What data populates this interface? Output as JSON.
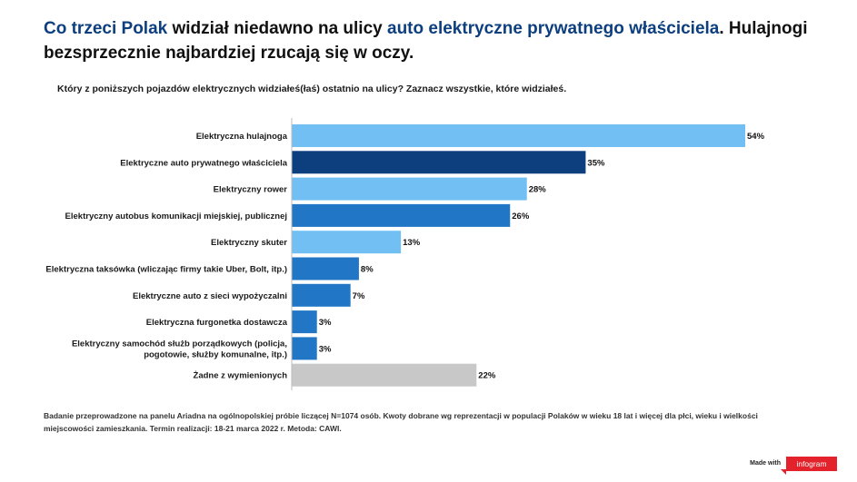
{
  "title": {
    "part1": "Co trzeci Polak",
    "part2": " widział niedawno na ulicy ",
    "part3": "auto elektryczne prywatnego właściciela",
    "part4": ". Hulajnogi bezsprzecznie najbardziej rzucają się w oczy."
  },
  "question": "Który z poniższych pojazdów elektrycznych widziałeś(łaś) ostatnio na ulicy? Zaznacz wszystkie, które widziałeś.",
  "footnote": "Badanie przeprowadzone na panelu Ariadna na ogólnopolskiej próbie liczącej N=1074 osób. Kwoty dobrane wg reprezentacji w populacji Polaków w wieku 18 lat i więcej dla płci, wieku i wielkości miejscowości zamieszkania. Termin realizacji:  18-21 marca 2022 r. Metoda: CAWI.",
  "branding": {
    "made_with": "Made with",
    "logo": "infogram"
  },
  "chart_data": {
    "type": "bar",
    "orientation": "horizontal",
    "categories": [
      [
        "Elektryczna hulajnoga"
      ],
      [
        "Elektryczne auto prywatnego właściciela"
      ],
      [
        "Elektryczny rower"
      ],
      [
        "Elektryczny autobus komunikacji miejskiej, publicznej"
      ],
      [
        "Elektryczny skuter"
      ],
      [
        "Elektryczna taksówka (wliczając firmy takie Uber, Bolt, itp.)"
      ],
      [
        "Elektryczne auto z sieci wypożyczalni"
      ],
      [
        "Elektryczna furgonetka dostawcza"
      ],
      [
        "Elektryczny samochód służb porządkowych (policja,",
        "pogotowie, służby komunalne, itp.)"
      ],
      [
        "Żadne z wymienionych"
      ]
    ],
    "values": [
      54,
      35,
      28,
      26,
      13,
      8,
      7,
      3,
      3,
      22
    ],
    "value_labels": [
      "54%",
      "35%",
      "28%",
      "26%",
      "13%",
      "8%",
      "7%",
      "3%",
      "3%",
      "22%"
    ],
    "colors": [
      "#71bff3",
      "#0d3f7f",
      "#71bff3",
      "#2176c5",
      "#71bff3",
      "#2176c5",
      "#2176c5",
      "#2176c5",
      "#2176c5",
      "#c8c8c8"
    ],
    "xlim": [
      0,
      54
    ],
    "grid": false,
    "legend": "none"
  }
}
